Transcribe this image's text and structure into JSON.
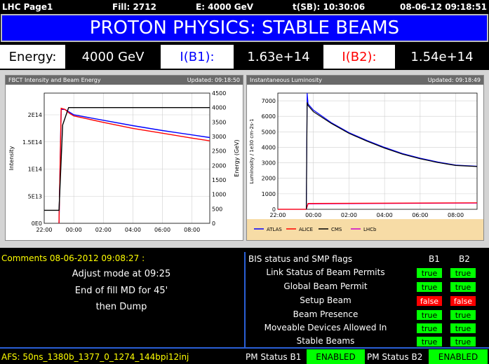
{
  "topbar": {
    "page": "LHC Page1",
    "fill": "Fill: 2712",
    "energy": "E:   4000 GeV",
    "time_sb": "t(SB): 10:30:06",
    "datetime": "08-06-12 09:18:51"
  },
  "banner": {
    "title": "PROTON PHYSICS: STABLE BEAMS"
  },
  "energy_row": {
    "energy_label": "Energy:",
    "energy_value": "4000 GeV",
    "b1_label": "I(B1):",
    "b1_value": "1.63e+14",
    "b2_label": "I(B2):",
    "b2_value": "1.54e+14"
  },
  "colors": {
    "banner": "#0000ff",
    "b1": "#0000ff",
    "b2": "#ff0000",
    "flag_true": "#00ff00",
    "flag_false": "#ff0000",
    "comments": "#ffff00",
    "divider": "#2a5fd6"
  },
  "chart_data": [
    {
      "type": "line",
      "title": "FBCT Intensity and Beam Energy",
      "updated": "Updated: 09:18:50",
      "ylabel": "Intensity",
      "ylabel_right": "Energy (GeV)",
      "ylim": [
        0,
        240000000000000.0
      ],
      "ylim_right": [
        0,
        4500
      ],
      "xlim": [
        -2.0,
        9.2
      ],
      "x_ticks": [
        "22:00",
        "00:00",
        "02:00",
        "04:00",
        "06:00",
        "08:00"
      ],
      "y_ticks": [
        "0E0",
        "5E13",
        "1E14",
        "1.5E14",
        "2E14"
      ],
      "y_ticks_right": [
        "0",
        "500",
        "1000",
        "1500",
        "2000",
        "2500",
        "3000",
        "3500",
        "4000",
        "4500"
      ],
      "series": [
        {
          "color": "#0000ff",
          "axis": "left",
          "x": [
            -1.0,
            -0.85,
            -0.6,
            -0.3,
            0,
            2,
            4,
            6,
            8,
            9.2
          ],
          "y": [
            0,
            210000000000000.0,
            210000000000000.0,
            205000000000000.0,
            200000000000000.0,
            190000000000000.0,
            180000000000000.0,
            171000000000000.0,
            163000000000000.0,
            158000000000000.0
          ]
        },
        {
          "color": "#ff0000",
          "axis": "left",
          "x": [
            -1.0,
            -0.85,
            -0.6,
            -0.3,
            0,
            2,
            4,
            6,
            8,
            9.2
          ],
          "y": [
            0,
            212000000000000.0,
            210000000000000.0,
            203000000000000.0,
            198000000000000.0,
            186000000000000.0,
            175000000000000.0,
            166000000000000.0,
            157000000000000.0,
            152000000000000.0
          ]
        },
        {
          "color": "#000000",
          "axis": "right",
          "x": [
            -2.0,
            -1.0,
            -0.75,
            -0.35,
            9.2
          ],
          "y": [
            450,
            450,
            3400,
            4000,
            4000
          ]
        }
      ]
    },
    {
      "type": "line",
      "title": "Instantaneous Luminosity",
      "updated": "Updated: 09:18:49",
      "ylabel": "Luminosity / 1e30 cm-2s-1",
      "ylim": [
        0,
        7500
      ],
      "xlim": [
        -2.0,
        9.2
      ],
      "x_ticks": [
        "22:00",
        "00:00",
        "02:00",
        "04:00",
        "06:00",
        "08:00"
      ],
      "y_ticks": [
        "0",
        "1000",
        "2000",
        "3000",
        "4000",
        "5000",
        "6000",
        "7000"
      ],
      "legend": [
        "ATLAS",
        "ALICE",
        "CMS",
        "LHCb"
      ],
      "series": [
        {
          "name": "ATLAS",
          "color": "#0000ff",
          "x": [
            -0.4,
            -0.35,
            -0.3,
            0,
            1,
            2,
            3,
            4,
            5,
            6,
            7,
            8,
            9.2
          ],
          "y": [
            0,
            7500,
            6800,
            6400,
            5600,
            4950,
            4450,
            4000,
            3600,
            3300,
            3050,
            2850,
            2780
          ]
        },
        {
          "name": "CMS",
          "color": "#000000",
          "x": [
            -0.4,
            -0.35,
            -0.3,
            0,
            1,
            2,
            3,
            4,
            5,
            6,
            7,
            8,
            9.2
          ],
          "y": [
            0,
            6900,
            6700,
            6300,
            5550,
            4900,
            4400,
            3950,
            3560,
            3260,
            3020,
            2830,
            2760
          ]
        },
        {
          "name": "LHCb",
          "color": "#cc00cc",
          "x": [
            -2.0,
            -0.4,
            -0.3,
            9.2
          ],
          "y": [
            0,
            0,
            350,
            400
          ]
        },
        {
          "name": "ALICE",
          "color": "#ff0000",
          "x": [
            -2.0,
            -0.4,
            -0.3,
            9.2
          ],
          "y": [
            0,
            0,
            380,
            420
          ]
        }
      ]
    }
  ],
  "comments": {
    "header": "Comments 08-06-2012 09:08:27 :",
    "lines": [
      "Adjust mode at 09:25",
      "End of fill MD for 45'",
      "then Dump"
    ]
  },
  "bis": {
    "header": "BIS status and SMP flags",
    "b1_header": "B1",
    "b2_header": "B2",
    "rows": [
      {
        "label": "Link Status of Beam Permits",
        "b1": "true",
        "b2": "true"
      },
      {
        "label": "Global Beam Permit",
        "b1": "true",
        "b2": "true"
      },
      {
        "label": "Setup Beam",
        "b1": "false",
        "b2": "false"
      },
      {
        "label": "Beam Presence",
        "b1": "true",
        "b2": "true"
      },
      {
        "label": "Moveable Devices Allowed In",
        "b1": "true",
        "b2": "true"
      },
      {
        "label": "Stable Beams",
        "b1": "true",
        "b2": "true"
      }
    ]
  },
  "footer": {
    "afs": "AFS: 50ns_1380b_1377_0_1274_144bpi12inj",
    "pm_b1_label": "PM Status B1",
    "pm_b1_value": "ENABLED",
    "pm_b2_label": "PM Status B2",
    "pm_b2_value": "ENABLED"
  }
}
